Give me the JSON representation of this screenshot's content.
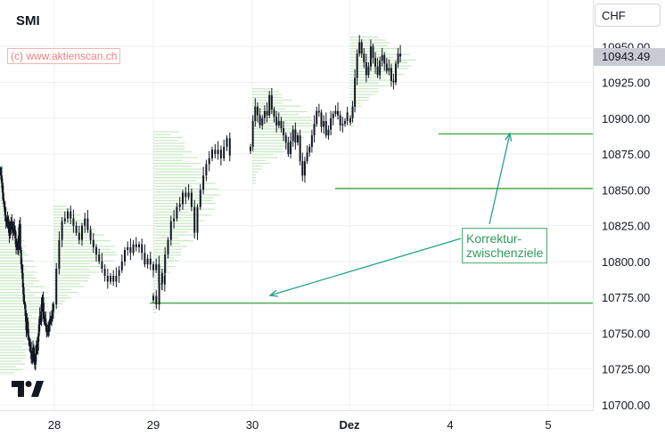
{
  "title": "SMI",
  "watermark": "(c) www.aktienscan.ch",
  "currency": "CHF",
  "last_price": "10943.49",
  "annotation": {
    "line1": "Korrektur-",
    "line2": "zwischenziele"
  },
  "colors": {
    "candle": "#131722",
    "grid": "#eef0f3",
    "profile": "#c7e8c2",
    "level": "#4caf50",
    "arrow": "#26a08a",
    "badge": "#c8cbd1"
  },
  "icons": {
    "logo": "tradingview-logo-icon",
    "arrow": "arrow-icon"
  },
  "chart_data": {
    "type": "candlestick",
    "title": "SMI",
    "ylabel": "",
    "ylim": [
      10700,
      10975
    ],
    "yticks": [
      10700,
      10725,
      10750,
      10775,
      10800,
      10825,
      10850,
      10875,
      10900,
      10925,
      10950
    ],
    "ytick_labels": [
      "10700.00",
      "10725.00",
      "10750.00",
      "10775.00",
      "10800.00",
      "10825.00",
      "10850.00",
      "10875.00",
      "10900.00",
      "10925.00",
      "10950.00"
    ],
    "x_tick_labels": [
      "28",
      "29",
      "30",
      "Dez",
      "4",
      "5"
    ],
    "x_tick_days": [
      28,
      29,
      30,
      1,
      4,
      5
    ],
    "key_levels": [
      10889,
      10851,
      10771
    ],
    "last_price": 10943.49,
    "series_close": [
      [
        10862,
        10860,
        10855,
        10848,
        10842,
        10838,
        10832,
        10828,
        10826,
        10830,
        10824,
        10818,
        10822,
        10828,
        10826,
        10820,
        10824,
        10822,
        10816,
        10810,
        10812,
        10808,
        10818,
        10826,
        10808,
        10798,
        10792,
        10782,
        10772,
        10770,
        10762,
        10752,
        10758,
        10748,
        10745,
        10742,
        10738,
        10732,
        10734,
        10740,
        10732,
        10728,
        10735,
        10742,
        10738,
        10748,
        10756,
        10762,
        10758,
        10770,
        10775,
        10765,
        10758,
        10760,
        10755,
        10752,
        10750,
        10752,
        10756,
        10760,
        10758,
        10762,
        10765,
        10768
      ],
      [
        10770,
        10795,
        10815,
        10828,
        10830,
        10835,
        10830,
        10825,
        10820,
        10815,
        10825,
        10830,
        10822,
        10815,
        10810,
        10805,
        10800,
        10795,
        10790,
        10786,
        10790,
        10786,
        10790,
        10794,
        10800,
        10808,
        10810,
        10806,
        10812,
        10810,
        10812,
        10806,
        10798,
        10802,
        10798,
        10794,
        10798,
        10785,
        10784,
        10790
      ],
      [
        10776,
        10770,
        10785,
        10792,
        10805,
        10815,
        10828,
        10830,
        10838,
        10840,
        10848,
        10845,
        10848,
        10838,
        10820,
        10838,
        10850,
        10860,
        10868,
        10872,
        10878,
        10875,
        10878,
        10872,
        10880,
        10886,
        10874
      ],
      [
        10880,
        10898,
        10908,
        10902,
        10895,
        10900,
        10905,
        10902,
        10916,
        10906,
        10901,
        10895,
        10898,
        10893,
        10888,
        10883,
        10875,
        10884,
        10892,
        10883,
        10888,
        10870,
        10860,
        10870,
        10876,
        10880,
        10888,
        10896,
        10905,
        10904,
        10894,
        10898,
        10888,
        10892,
        10900,
        10903,
        10905,
        10902,
        10895,
        10896,
        10898,
        10904
      ],
      [
        10900,
        10908,
        10928,
        10945,
        10953,
        10945,
        10939,
        10930,
        10936,
        10950,
        10942,
        10936,
        10930,
        10940,
        10944,
        10938,
        10933,
        10935,
        10926,
        10925,
        10938,
        10945,
        10943
      ]
    ]
  }
}
